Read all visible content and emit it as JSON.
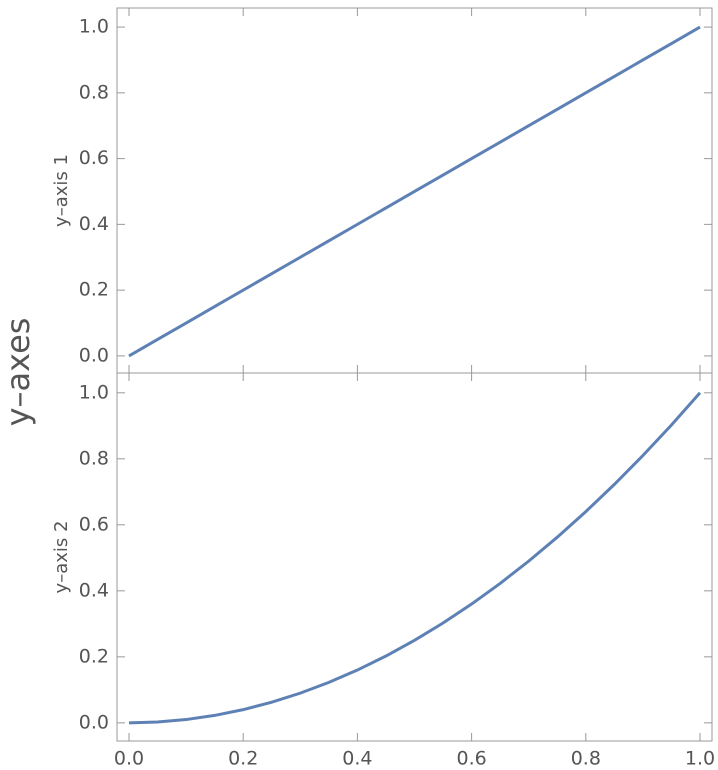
{
  "supylabel": "y–axes",
  "chart_data": [
    {
      "type": "line",
      "ylabel": "y–axis 1",
      "x": [
        0,
        0.05,
        0.1,
        0.15,
        0.2,
        0.25,
        0.3,
        0.35,
        0.4,
        0.45,
        0.5,
        0.55,
        0.6,
        0.65,
        0.7,
        0.75,
        0.8,
        0.85,
        0.9,
        0.95,
        1
      ],
      "series": [
        {
          "color": "#5e81b5",
          "values": [
            0,
            0.05,
            0.1,
            0.15,
            0.2,
            0.25,
            0.3,
            0.35,
            0.4,
            0.45,
            0.5,
            0.55,
            0.6,
            0.65,
            0.7,
            0.75,
            0.8,
            0.85,
            0.9,
            0.95,
            1
          ]
        }
      ],
      "xlim": [
        -0.021,
        1.021
      ],
      "ylim": [
        -0.052,
        1.058
      ],
      "yticks": [
        {
          "value": 0,
          "label": "0.0"
        },
        {
          "value": 0.2,
          "label": "0.2"
        },
        {
          "value": 0.4,
          "label": "0.4"
        },
        {
          "value": 0.6,
          "label": "0.6"
        },
        {
          "value": 0.8,
          "label": "0.8"
        },
        {
          "value": 1,
          "label": "1.0"
        }
      ]
    },
    {
      "type": "line",
      "ylabel": "y–axis 2",
      "x": [
        0,
        0.05,
        0.1,
        0.15,
        0.2,
        0.25,
        0.3,
        0.35,
        0.4,
        0.45,
        0.5,
        0.55,
        0.6,
        0.65,
        0.7,
        0.75,
        0.8,
        0.85,
        0.9,
        0.95,
        1
      ],
      "series": [
        {
          "color": "#5e81b5",
          "values": [
            0,
            0.0025,
            0.01,
            0.0225,
            0.04,
            0.0625,
            0.09,
            0.1225,
            0.16,
            0.2025,
            0.25,
            0.3025,
            0.36,
            0.4225,
            0.49,
            0.5625,
            0.64,
            0.7225,
            0.81,
            0.9025,
            1
          ]
        }
      ],
      "xlim": [
        -0.021,
        1.021
      ],
      "ylim": [
        -0.055,
        1.06
      ],
      "xticks": [
        {
          "value": 0,
          "label": "0.0"
        },
        {
          "value": 0.2,
          "label": "0.2"
        },
        {
          "value": 0.4,
          "label": "0.4"
        },
        {
          "value": 0.6,
          "label": "0.6"
        },
        {
          "value": 0.8,
          "label": "0.8"
        },
        {
          "value": 1,
          "label": "1.0"
        }
      ],
      "yticks": [
        {
          "value": 0,
          "label": "0.0"
        },
        {
          "value": 0.2,
          "label": "0.2"
        },
        {
          "value": 0.4,
          "label": "0.4"
        },
        {
          "value": 0.6,
          "label": "0.6"
        },
        {
          "value": 0.8,
          "label": "0.8"
        },
        {
          "value": 1,
          "label": "1.0"
        }
      ]
    }
  ]
}
